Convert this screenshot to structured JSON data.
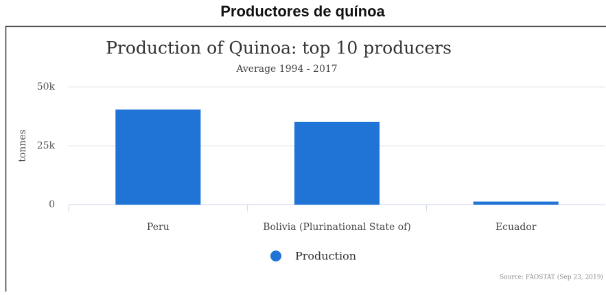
{
  "heading": "Productores de quínoa",
  "chart_data": {
    "type": "bar",
    "title": "Production of Quinoa: top 10 producers",
    "subtitle": "Average 1994 - 2017",
    "y_label": "tonnes",
    "categories": [
      "Peru",
      "Bolivia (Plurinational State of)",
      "Ecuador"
    ],
    "series": [
      {
        "name": "Production",
        "color": "#1f74d6",
        "values": [
          40400,
          35200,
          1300
        ]
      }
    ],
    "ylim": [
      0,
      50000
    ],
    "yticks": [
      0,
      {
        "value": 25000,
        "label": "25k"
      },
      {
        "value": 50000,
        "label": "50k"
      }
    ],
    "grid": true,
    "legend": "bottom",
    "source": "Source: FAOSTAT (Sep 23, 2019)"
  }
}
